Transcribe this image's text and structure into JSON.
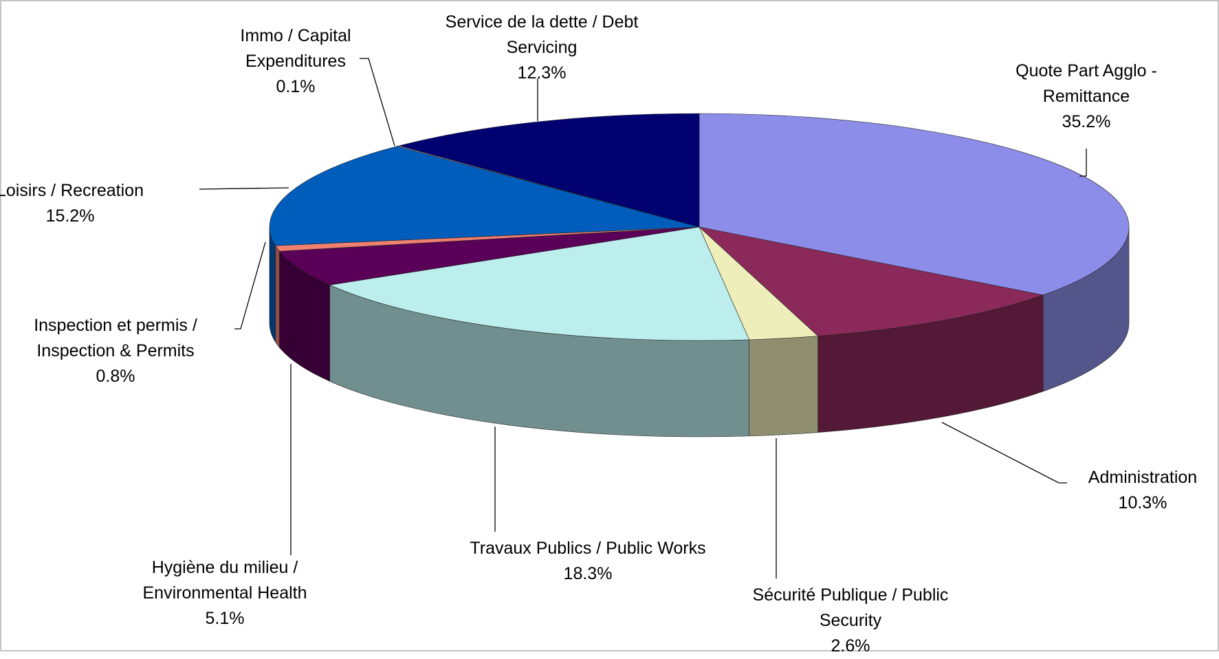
{
  "chart_data": {
    "type": "pie3d",
    "categories": [
      "Quote Part Agglo - Remittance",
      "Administration",
      "Sécurité Publique / Public Security",
      "Travaux Publics / Public Works",
      "Hygiène du milieu / Environmental Health",
      "Inspection et permis / Inspection & Permits",
      "Loisirs / Recreation",
      "Immo / Capital Expenditures",
      "Service de la dette / Debt Servicing"
    ],
    "values": [
      35.2,
      10.3,
      2.6,
      18.3,
      5.1,
      0.8,
      15.2,
      0.1,
      12.3
    ],
    "value_labels": [
      "35.2%",
      "10.3%",
      "2.6%",
      "18.3%",
      "5.1%",
      "0.8%",
      "15.2%",
      "0.1%",
      "12.3%"
    ],
    "colors": [
      "#8b8de8",
      "#8b2a5a",
      "#eeeebb",
      "#bdeeee",
      "#5a0058",
      "#f08070",
      "#005dbb",
      "#c0c0e0",
      "#000070"
    ]
  }
}
